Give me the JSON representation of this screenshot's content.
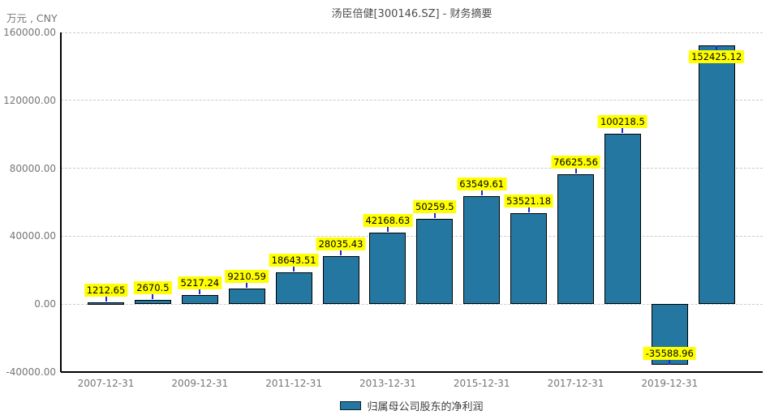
{
  "header": {
    "title": "汤臣倍健[300146.SZ] - 财务摘要",
    "unit_label": "万元 , CNY"
  },
  "legend": {
    "label": "归属母公司股东的净利润"
  },
  "colors": {
    "bar_fill": "#2377a0",
    "bar_border": "#000000",
    "label_bg": "#ffff00",
    "label_text": "#000000",
    "connector": "#2026dd",
    "grid": "#cccccc",
    "axis": "#000000",
    "tick_text": "#757575",
    "title_text": "#4d4d4d"
  },
  "chart_data": {
    "type": "bar",
    "title": "汤臣倍健[300146.SZ] - 财务摘要",
    "unit": "万元 , CNY",
    "series": [
      {
        "name": "归属母公司股东的净利润",
        "values": [
          1212.65,
          2670.5,
          5217.24,
          9210.59,
          18643.51,
          28035.43,
          42168.63,
          50259.5,
          63549.61,
          53521.18,
          76625.56,
          100218.5,
          -35588.96,
          152425.12
        ],
        "data_labels": [
          "1212.65",
          "2670.5",
          "5217.24",
          "9210.59",
          "18643.51",
          "28035.43",
          "42168.63",
          "50259.5",
          "63549.61",
          "53521.18",
          "76625.56",
          "100218.5",
          "-35588.96",
          "152425.12"
        ]
      }
    ],
    "x_tick_labels": [
      "2007-12-31",
      "2009-12-31",
      "2011-12-31",
      "2013-12-31",
      "2015-12-31",
      "2017-12-31",
      "2019-12-31"
    ],
    "x_tick_every": 2,
    "bar_count": 14,
    "y_ticks": [
      160000,
      120000,
      80000,
      40000,
      0,
      -40000
    ],
    "y_tick_labels": [
      "160000.00",
      "120000.00",
      "80000.00",
      "40000.00",
      "0.00",
      "-40000.00"
    ],
    "ylim": [
      -40000,
      160000
    ],
    "grid": "dashed-horizontal",
    "legend_position": "bottom-center",
    "data_label_style": "yellow-box-with-blue-callout"
  }
}
